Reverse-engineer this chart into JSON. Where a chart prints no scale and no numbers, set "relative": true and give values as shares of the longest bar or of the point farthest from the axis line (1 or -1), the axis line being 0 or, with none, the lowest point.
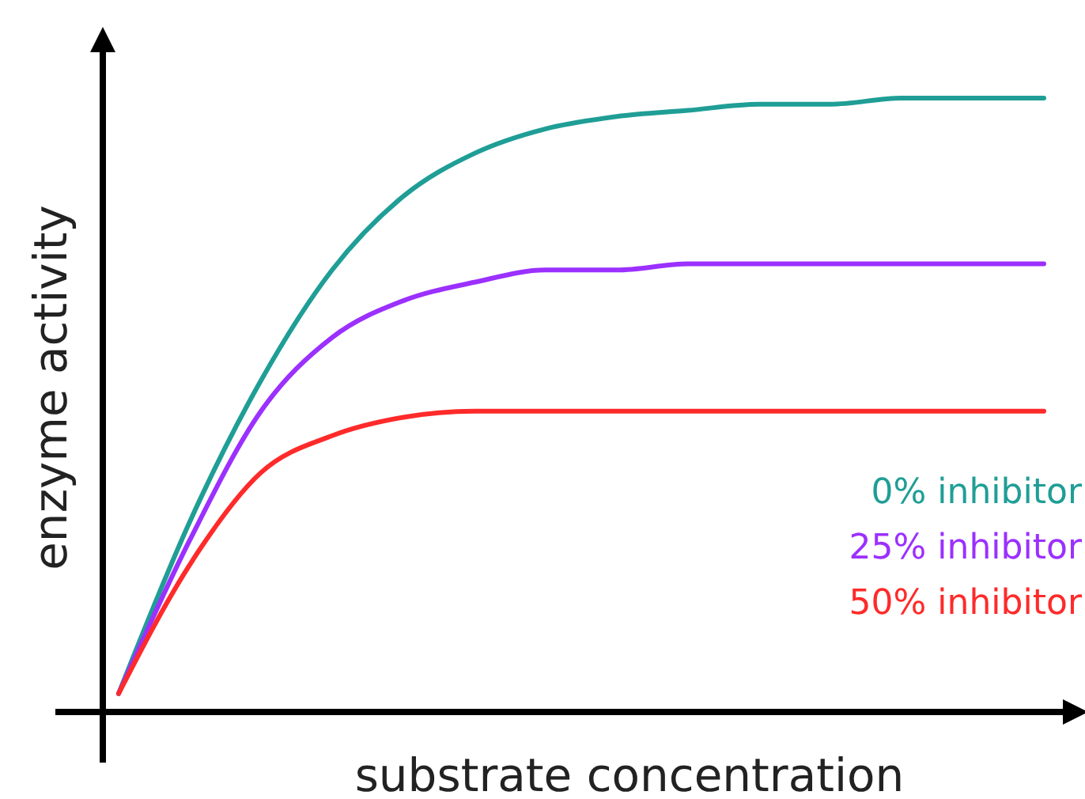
{
  "chart_data": {
    "type": "line",
    "relative": true,
    "xlabel": "substrate concentration",
    "ylabel": "enzyme activity",
    "legend": "right",
    "categories": [
      null,
      null,
      null,
      null,
      null,
      null,
      null,
      null,
      null,
      null,
      null,
      null,
      null,
      null
    ],
    "series": [
      {
        "name": "0% inhibitor",
        "color": "#1f9e96",
        "values": [
          0.03,
          0.31,
          0.54,
          0.72,
          0.84,
          0.91,
          0.95,
          0.97,
          0.98,
          0.99,
          0.99,
          1.0,
          1.0,
          1.0
        ]
      },
      {
        "name": "25% inhibitor",
        "color": "#9b30ff",
        "values": [
          0.03,
          0.28,
          0.49,
          0.61,
          0.67,
          0.7,
          0.72,
          0.72,
          0.73,
          0.73,
          0.73,
          0.73,
          0.73,
          0.73
        ]
      },
      {
        "name": "50% inhibitor",
        "color": "#ff2a2a",
        "values": [
          0.03,
          0.24,
          0.39,
          0.45,
          0.48,
          0.49,
          0.49,
          0.49,
          0.49,
          0.49,
          0.49,
          0.49,
          0.49,
          0.49
        ]
      }
    ]
  }
}
